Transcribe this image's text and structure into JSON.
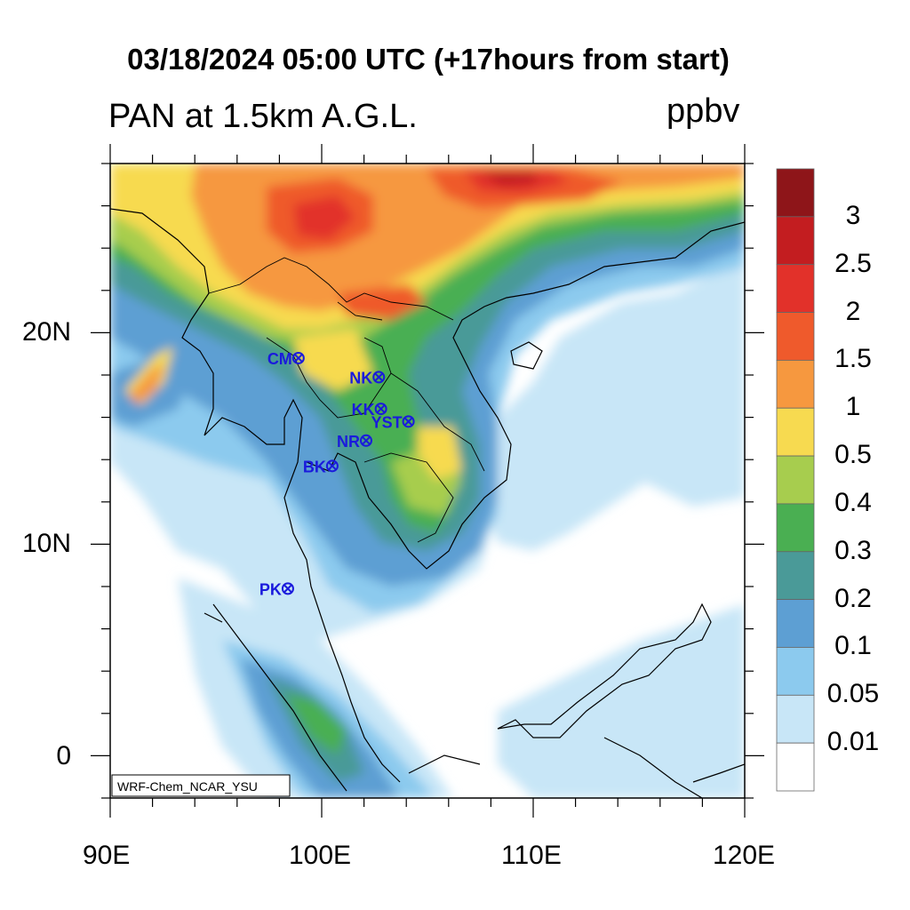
{
  "title": "03/18/2024 05:00 UTC (+17hours from start)",
  "left_string": "PAN at 1.5km A.G.L.",
  "right_string": "ppbv",
  "credit": "WRF-Chem_NCAR_YSU",
  "axes": {
    "lon_ticks": [
      "90E",
      "100E",
      "110E",
      "120E"
    ],
    "lat_ticks": [
      "20N",
      "10N",
      "0"
    ]
  },
  "map": {
    "lon_range": [
      90,
      120
    ],
    "lat_range": [
      -2,
      28
    ]
  },
  "colorbar": {
    "labels": [
      "3",
      "2.5",
      "2",
      "1.5",
      "1",
      "0.5",
      "0.4",
      "0.3",
      "0.2",
      "0.1",
      "0.05",
      "0.01"
    ],
    "colors": [
      "#8e1519",
      "#c31d20",
      "#e2312a",
      "#ef5a2c",
      "#f6983f",
      "#f7da50",
      "#a7cd4e",
      "#4aaf52",
      "#4a9a98",
      "#5d9fd3",
      "#8ccaee",
      "#c8e6f7",
      "#ffffff"
    ]
  },
  "stations": [
    {
      "name": "CM",
      "lon": 98.9,
      "lat": 18.8
    },
    {
      "name": "NK",
      "lon": 102.7,
      "lat": 17.9
    },
    {
      "name": "KK",
      "lon": 102.8,
      "lat": 16.4
    },
    {
      "name": "YST",
      "lon": 104.1,
      "lat": 15.8
    },
    {
      "name": "NR",
      "lon": 102.1,
      "lat": 14.9
    },
    {
      "name": "BK",
      "lon": 100.5,
      "lat": 13.7
    },
    {
      "name": "PK",
      "lon": 98.4,
      "lat": 7.9
    }
  ]
}
